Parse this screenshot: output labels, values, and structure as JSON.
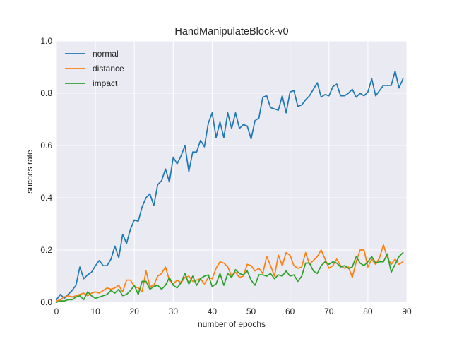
{
  "chart_data": {
    "type": "line",
    "title": "HandManipulateBlock-v0",
    "xlabel": "number of epochs",
    "ylabel": "succes rate",
    "xlim": [
      0,
      90
    ],
    "ylim": [
      0,
      1.0
    ],
    "xticks": [
      0,
      10,
      20,
      30,
      40,
      50,
      60,
      70,
      80,
      90
    ],
    "yticks": [
      0.0,
      0.2,
      0.4,
      0.6,
      0.8,
      1.0
    ],
    "xtick_labels": [
      "0",
      "10",
      "20",
      "30",
      "40",
      "50",
      "60",
      "70",
      "80",
      "90"
    ],
    "ytick_labels": [
      "0.0",
      "0.2",
      "0.4",
      "0.6",
      "0.8",
      "1.0"
    ],
    "grid": true,
    "legend_position": "top-left",
    "background": "#eaeaf2",
    "series": [
      {
        "name": "normal",
        "color": "#1f77b4",
        "x": [
          0,
          1,
          2,
          3,
          4,
          5,
          6,
          7,
          8,
          9,
          10,
          11,
          12,
          13,
          14,
          15,
          16,
          17,
          18,
          19,
          20,
          21,
          22,
          23,
          24,
          25,
          26,
          27,
          28,
          29,
          30,
          31,
          32,
          33,
          34,
          35,
          36,
          37,
          38,
          39,
          40,
          41,
          42,
          43,
          44,
          45,
          46,
          47,
          48,
          49,
          50,
          51,
          52,
          53,
          54,
          55,
          56,
          57,
          58,
          59,
          60,
          61,
          62,
          63,
          64,
          65,
          66,
          67,
          68,
          69,
          70,
          71,
          72,
          73,
          74,
          75,
          76,
          77,
          78,
          79,
          80,
          81,
          82,
          83,
          84,
          85,
          86,
          87,
          88,
          89
        ],
        "values": [
          0.01,
          0.03,
          0.015,
          0.03,
          0.045,
          0.065,
          0.135,
          0.09,
          0.105,
          0.115,
          0.14,
          0.16,
          0.14,
          0.14,
          0.165,
          0.215,
          0.17,
          0.26,
          0.225,
          0.28,
          0.315,
          0.31,
          0.365,
          0.4,
          0.415,
          0.37,
          0.45,
          0.465,
          0.51,
          0.46,
          0.555,
          0.53,
          0.56,
          0.6,
          0.5,
          0.575,
          0.575,
          0.62,
          0.595,
          0.685,
          0.725,
          0.63,
          0.69,
          0.63,
          0.725,
          0.665,
          0.725,
          0.665,
          0.68,
          0.675,
          0.625,
          0.695,
          0.705,
          0.785,
          0.79,
          0.745,
          0.74,
          0.735,
          0.79,
          0.725,
          0.805,
          0.81,
          0.75,
          0.755,
          0.775,
          0.79,
          0.815,
          0.84,
          0.785,
          0.795,
          0.79,
          0.825,
          0.835,
          0.79,
          0.79,
          0.8,
          0.815,
          0.785,
          0.8,
          0.79,
          0.805,
          0.855,
          0.79,
          0.81,
          0.83,
          0.83,
          0.83,
          0.885,
          0.82,
          0.855
        ]
      },
      {
        "name": "distance",
        "color": "#ff7f0e",
        "x": [
          0,
          1,
          2,
          3,
          4,
          5,
          6,
          7,
          8,
          9,
          10,
          11,
          12,
          13,
          14,
          15,
          16,
          17,
          18,
          19,
          20,
          21,
          22,
          23,
          24,
          25,
          26,
          27,
          28,
          29,
          30,
          31,
          32,
          33,
          34,
          35,
          36,
          37,
          38,
          39,
          40,
          41,
          42,
          43,
          44,
          45,
          46,
          47,
          48,
          49,
          50,
          51,
          52,
          53,
          54,
          55,
          56,
          57,
          58,
          59,
          60,
          61,
          62,
          63,
          64,
          65,
          66,
          67,
          68,
          69,
          70,
          71,
          72,
          73,
          74,
          75,
          76,
          77,
          78,
          79,
          80,
          81,
          82,
          83,
          84,
          85,
          86,
          87,
          88,
          89
        ],
        "values": [
          0.005,
          0.01,
          0.02,
          0.025,
          0.02,
          0.025,
          0.03,
          0.035,
          0.025,
          0.035,
          0.04,
          0.035,
          0.045,
          0.055,
          0.05,
          0.055,
          0.065,
          0.04,
          0.085,
          0.085,
          0.06,
          0.055,
          0.04,
          0.12,
          0.06,
          0.065,
          0.1,
          0.11,
          0.135,
          0.085,
          0.07,
          0.085,
          0.075,
          0.095,
          0.1,
          0.08,
          0.085,
          0.09,
          0.07,
          0.095,
          0.09,
          0.13,
          0.155,
          0.15,
          0.135,
          0.1,
          0.115,
          0.095,
          0.1,
          0.145,
          0.14,
          0.12,
          0.13,
          0.11,
          0.175,
          0.14,
          0.1,
          0.18,
          0.14,
          0.19,
          0.18,
          0.14,
          0.13,
          0.135,
          0.19,
          0.145,
          0.16,
          0.175,
          0.2,
          0.165,
          0.13,
          0.14,
          0.165,
          0.14,
          0.13,
          0.135,
          0.095,
          0.155,
          0.2,
          0.2,
          0.135,
          0.165,
          0.145,
          0.17,
          0.22,
          0.17,
          0.145,
          0.165,
          0.145,
          0.155
        ]
      },
      {
        "name": "impact",
        "color": "#2ca02c",
        "x": [
          0,
          1,
          2,
          3,
          4,
          5,
          6,
          7,
          8,
          9,
          10,
          11,
          12,
          13,
          14,
          15,
          16,
          17,
          18,
          19,
          20,
          21,
          22,
          23,
          24,
          25,
          26,
          27,
          28,
          29,
          30,
          31,
          32,
          33,
          34,
          35,
          36,
          37,
          38,
          39,
          40,
          41,
          42,
          43,
          44,
          45,
          46,
          47,
          48,
          49,
          50,
          51,
          52,
          53,
          54,
          55,
          56,
          57,
          58,
          59,
          60,
          61,
          62,
          63,
          64,
          65,
          66,
          67,
          68,
          69,
          70,
          71,
          72,
          73,
          74,
          75,
          76,
          77,
          78,
          79,
          80,
          81,
          82,
          83,
          84,
          85,
          86,
          87,
          88,
          89
        ],
        "values": [
          0.0,
          0.005,
          0.005,
          0.01,
          0.01,
          0.02,
          0.025,
          0.01,
          0.04,
          0.025,
          0.015,
          0.02,
          0.025,
          0.03,
          0.045,
          0.035,
          0.05,
          0.025,
          0.03,
          0.045,
          0.065,
          0.03,
          0.08,
          0.08,
          0.05,
          0.06,
          0.065,
          0.05,
          0.065,
          0.095,
          0.065,
          0.055,
          0.075,
          0.11,
          0.07,
          0.1,
          0.065,
          0.09,
          0.1,
          0.105,
          0.06,
          0.07,
          0.11,
          0.065,
          0.11,
          0.095,
          0.125,
          0.11,
          0.105,
          0.12,
          0.085,
          0.065,
          0.105,
          0.105,
          0.1,
          0.11,
          0.09,
          0.105,
          0.1,
          0.12,
          0.1,
          0.105,
          0.08,
          0.1,
          0.15,
          0.15,
          0.12,
          0.11,
          0.14,
          0.155,
          0.145,
          0.155,
          0.15,
          0.135,
          0.14,
          0.13,
          0.135,
          0.175,
          0.15,
          0.14,
          0.155,
          0.175,
          0.15,
          0.155,
          0.155,
          0.185,
          0.115,
          0.145,
          0.175,
          0.19
        ]
      }
    ]
  }
}
